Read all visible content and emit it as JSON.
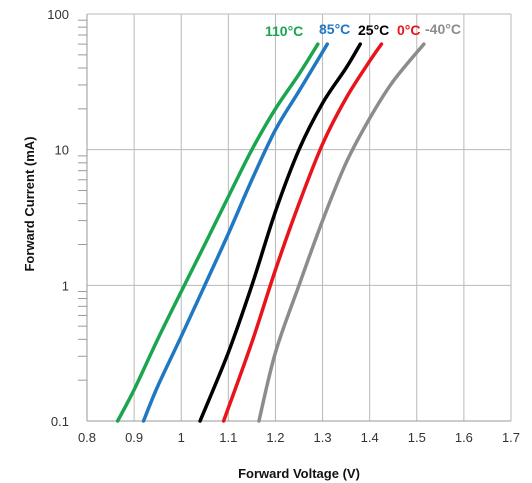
{
  "chart_data": {
    "type": "line",
    "xlabel": "Forward Voltage (V)",
    "ylabel": "Forward Current (mA)",
    "xlim": [
      0.8,
      1.7
    ],
    "ylim": [
      0.1,
      100
    ],
    "yscale": "log",
    "grid": true,
    "x_ticks": [
      "0.8",
      "0.9",
      "1",
      "1.1",
      "1.2",
      "1.3",
      "1.4",
      "1.5",
      "1.6",
      "1.7"
    ],
    "y_ticks": [
      "0.1",
      "1",
      "10",
      "100"
    ],
    "series": [
      {
        "name": "110°C",
        "color": "#1aa650",
        "points": [
          [
            0.865,
            0.1
          ],
          [
            0.9,
            0.17
          ],
          [
            0.95,
            0.4
          ],
          [
            1.0,
            0.9
          ],
          [
            1.05,
            2.0
          ],
          [
            1.1,
            4.5
          ],
          [
            1.15,
            10
          ],
          [
            1.2,
            20
          ],
          [
            1.25,
            36
          ],
          [
            1.29,
            60
          ]
        ]
      },
      {
        "name": "85°C",
        "color": "#1f78c1",
        "points": [
          [
            0.92,
            0.1
          ],
          [
            0.95,
            0.18
          ],
          [
            1.0,
            0.42
          ],
          [
            1.05,
            1.0
          ],
          [
            1.1,
            2.4
          ],
          [
            1.15,
            6
          ],
          [
            1.2,
            14
          ],
          [
            1.25,
            27
          ],
          [
            1.31,
            60
          ]
        ]
      },
      {
        "name": "25°C",
        "color": "#000000",
        "points": [
          [
            1.04,
            0.1
          ],
          [
            1.1,
            0.32
          ],
          [
            1.15,
            1.0
          ],
          [
            1.2,
            3.5
          ],
          [
            1.25,
            10
          ],
          [
            1.3,
            22
          ],
          [
            1.35,
            40
          ],
          [
            1.38,
            60
          ]
        ]
      },
      {
        "name": "0°C",
        "color": "#e8141b",
        "points": [
          [
            1.09,
            0.1
          ],
          [
            1.15,
            0.38
          ],
          [
            1.2,
            1.3
          ],
          [
            1.25,
            4.0
          ],
          [
            1.3,
            11
          ],
          [
            1.35,
            24
          ],
          [
            1.4,
            45
          ],
          [
            1.425,
            60
          ]
        ]
      },
      {
        "name": "-40°C",
        "color": "#8c8c8c",
        "points": [
          [
            1.165,
            0.1
          ],
          [
            1.2,
            0.32
          ],
          [
            1.25,
            1.0
          ],
          [
            1.3,
            3.0
          ],
          [
            1.35,
            8
          ],
          [
            1.4,
            17
          ],
          [
            1.45,
            32
          ],
          [
            1.515,
            60
          ]
        ]
      }
    ]
  }
}
